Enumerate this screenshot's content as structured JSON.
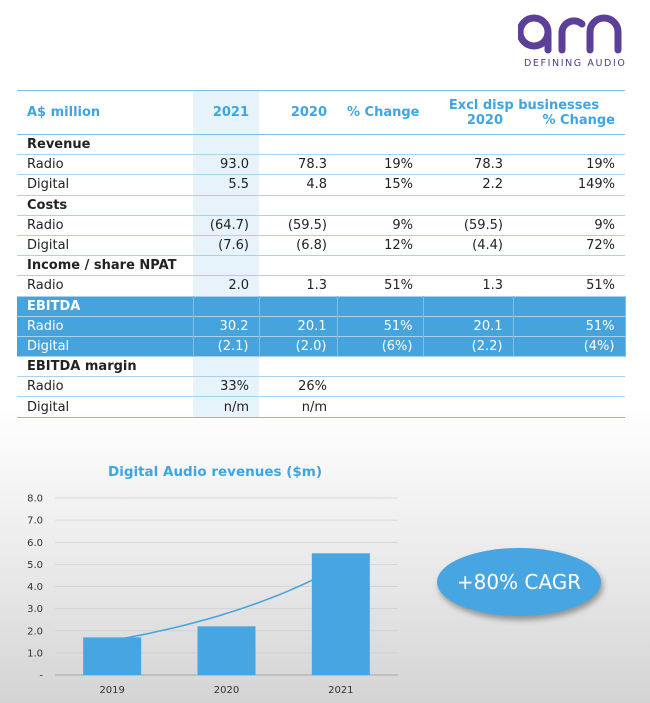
{
  "brand": {
    "name": "arn",
    "tagline": "DEFINING AUDIO",
    "color": "#5b3f98"
  },
  "table": {
    "headers": {
      "label": "A$ million",
      "y2021": "2021",
      "y2020": "2020",
      "change": "% Change",
      "excl_group": "Excl disp businesses",
      "excl_2020": "2020",
      "excl_change": "%  Change"
    },
    "rows": [
      {
        "label": "Revenue",
        "section": true
      },
      {
        "label": "Radio",
        "y2021": "93.0",
        "y2020": "78.3",
        "change": "19%",
        "excl_2020": "78.3",
        "excl_change": "19%"
      },
      {
        "label": "Digital",
        "y2021": "5.5",
        "y2020": "4.8",
        "change": "15%",
        "excl_2020": "2.2",
        "excl_change": "149%"
      },
      {
        "label": "Costs",
        "section": true
      },
      {
        "label": "Radio",
        "y2021": "(64.7)",
        "y2020": "(59.5)",
        "change": "9%",
        "excl_2020": "(59.5)",
        "excl_change": "9%"
      },
      {
        "label": "Digital",
        "y2021": "(7.6)",
        "y2020": "(6.8)",
        "change": "12%",
        "excl_2020": "(4.4)",
        "excl_change": "72%"
      },
      {
        "label": "Income / share NPAT",
        "section": true
      },
      {
        "label": "Radio",
        "y2021": "2.0",
        "y2020": "1.3",
        "change": "51%",
        "excl_2020": "1.3",
        "excl_change": "51%"
      },
      {
        "label": "EBITDA",
        "section": true,
        "highlight": true
      },
      {
        "label": "Radio",
        "y2021": "30.2",
        "y2020": "20.1",
        "change": "51%",
        "excl_2020": "20.1",
        "excl_change": "51%",
        "highlight": true
      },
      {
        "label": "Digital",
        "y2021": "(2.1)",
        "y2020": "(2.0)",
        "change": "(6%)",
        "excl_2020": "(2.2)",
        "excl_change": "(4%)",
        "highlight": true
      },
      {
        "label": "EBITDA margin",
        "section": true
      },
      {
        "label": "Radio",
        "y2021": "33%",
        "y2020": "26%",
        "change": "",
        "excl_2020": "",
        "excl_change": ""
      },
      {
        "label": "Digital",
        "y2021": "n/m",
        "y2020": "n/m",
        "change": "",
        "excl_2020": "",
        "excl_change": ""
      }
    ]
  },
  "chart_data": {
    "type": "bar",
    "title": "Digital Audio revenues ($m)",
    "categories": [
      "2019",
      "2020",
      "2021"
    ],
    "values": [
      1.7,
      2.2,
      5.5
    ],
    "ylim": [
      0,
      8
    ],
    "yticks": [
      "-",
      "1.0",
      "2.0",
      "3.0",
      "4.0",
      "5.0",
      "6.0",
      "7.0",
      "8.0"
    ],
    "xlabel": "",
    "ylabel": "",
    "grid": true,
    "trendline": true,
    "bar_color": "#47a6e2",
    "title_color": "#3fa5e0"
  },
  "cagr_label": "+80% CAGR"
}
